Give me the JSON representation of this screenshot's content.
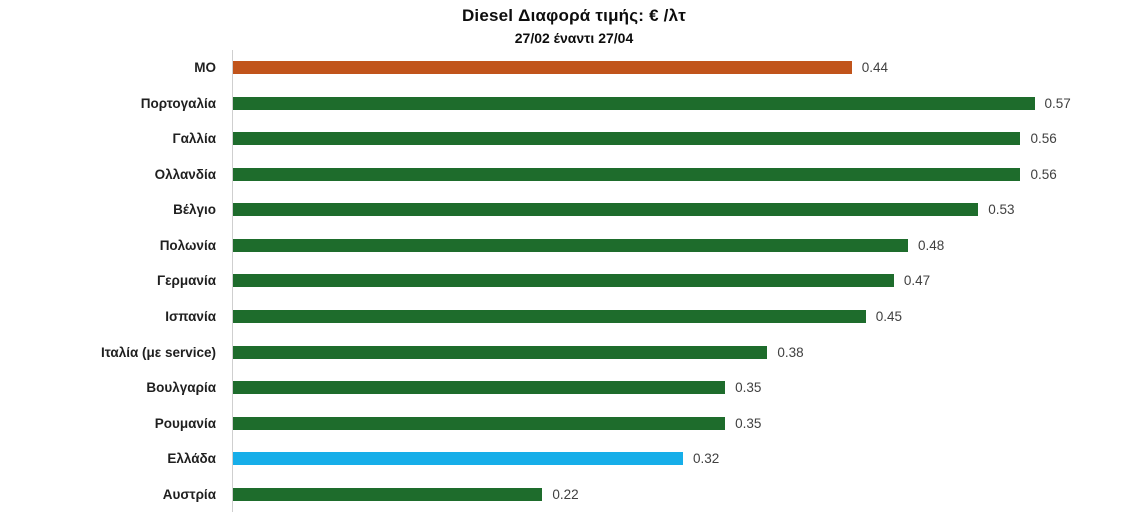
{
  "chart_data": {
    "type": "bar",
    "orientation": "horizontal",
    "title": "Diesel Διαφορά τιμής: € /λτ",
    "subtitle": "27/02 έναντι 27/04",
    "categories": [
      "ΜΟ",
      "Πορτογαλία",
      "Γαλλία",
      "Ολλανδία",
      "Βέλγιο",
      "Πολωνία",
      "Γερμανία",
      "Ισπανία",
      "Ιταλία (με service)",
      "Βουλγαρία",
      "Ρουμανία",
      "Ελλάδα",
      "Αυστρία"
    ],
    "values": [
      0.44,
      0.57,
      0.56,
      0.56,
      0.53,
      0.48,
      0.47,
      0.45,
      0.38,
      0.35,
      0.35,
      0.32,
      0.22
    ],
    "value_labels": [
      "0.44",
      "0.57",
      "0.56",
      "0.56",
      "0.53",
      "0.48",
      "0.47",
      "0.45",
      "0.38",
      "0.35",
      "0.35",
      "0.32",
      "0.22"
    ],
    "bar_colors": [
      "#c1541b",
      "#1e6c2c",
      "#1e6c2c",
      "#1e6c2c",
      "#1e6c2c",
      "#1e6c2c",
      "#1e6c2c",
      "#1e6c2c",
      "#1e6c2c",
      "#1e6c2c",
      "#1e6c2c",
      "#16aee9",
      "#1e6c2c"
    ],
    "colors": {
      "default_bar": "#1e6c2c",
      "average_bar": "#c1541b",
      "highlight_bar": "#16aee9",
      "axis_line": "#cfcfcf",
      "category_text": "#1f1f1f",
      "value_text": "#404040"
    },
    "xlim": [
      0,
      0.645
    ],
    "grid": false,
    "legend": false,
    "xlabel": "",
    "ylabel": ""
  }
}
